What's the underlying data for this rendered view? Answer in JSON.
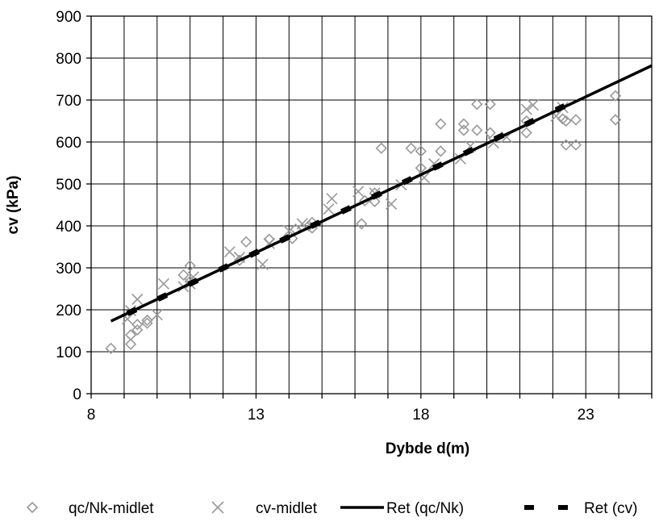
{
  "chart_data": {
    "type": "scatter",
    "title": "",
    "xlabel": "Dybde d(m)",
    "ylabel": "cv (kPa)",
    "xlim": [
      8,
      25
    ],
    "ylim": [
      0,
      900
    ],
    "x_ticks": [
      8,
      13,
      18,
      23
    ],
    "y_ticks": [
      0,
      100,
      200,
      300,
      400,
      500,
      600,
      700,
      800,
      900
    ],
    "x_tick_labels": [
      "8",
      "13",
      "18",
      "23"
    ],
    "y_tick_labels": [
      "0",
      "100",
      "200",
      "300",
      "400",
      "500",
      "600",
      "700",
      "800",
      "900"
    ],
    "grid": true,
    "legend_position": "bottom",
    "series": [
      {
        "name": "qc/Nk-midlet",
        "marker": "diamond",
        "color": "#999999",
        "points": [
          [
            8.6,
            108
          ],
          [
            9.2,
            118
          ],
          [
            9.2,
            140
          ],
          [
            9.4,
            152
          ],
          [
            9.4,
            165
          ],
          [
            9.7,
            168
          ],
          [
            9.7,
            175
          ],
          [
            10.8,
            283
          ],
          [
            11.0,
            305
          ],
          [
            11.0,
            268
          ],
          [
            12.5,
            318
          ],
          [
            12.7,
            362
          ],
          [
            13.4,
            368
          ],
          [
            14.1,
            370
          ],
          [
            14.2,
            392
          ],
          [
            14.6,
            400
          ],
          [
            14.7,
            408
          ],
          [
            14.7,
            395
          ],
          [
            16.2,
            405
          ],
          [
            16.3,
            460
          ],
          [
            16.6,
            458
          ],
          [
            16.6,
            478
          ],
          [
            16.8,
            585
          ],
          [
            17.7,
            585
          ],
          [
            18.0,
            538
          ],
          [
            18.0,
            578
          ],
          [
            18.6,
            578
          ],
          [
            18.6,
            643
          ],
          [
            19.3,
            643
          ],
          [
            19.3,
            628
          ],
          [
            19.7,
            690
          ],
          [
            19.7,
            628
          ],
          [
            20.1,
            690
          ],
          [
            20.1,
            622
          ],
          [
            21.2,
            622
          ],
          [
            21.2,
            650
          ],
          [
            22.3,
            655
          ],
          [
            22.4,
            593
          ],
          [
            22.4,
            650
          ],
          [
            22.7,
            593
          ],
          [
            22.7,
            653
          ],
          [
            23.9,
            710
          ],
          [
            23.9,
            653
          ]
        ]
      },
      {
        "name": "cv-midlet",
        "marker": "x",
        "color": "#999999",
        "points": [
          [
            9.1,
            178
          ],
          [
            9.2,
            198
          ],
          [
            9.4,
            225
          ],
          [
            10.0,
            188
          ],
          [
            10.2,
            262
          ],
          [
            10.8,
            255
          ],
          [
            11.0,
            262
          ],
          [
            11.1,
            278
          ],
          [
            12.2,
            338
          ],
          [
            12.5,
            325
          ],
          [
            13.2,
            308
          ],
          [
            13.4,
            358
          ],
          [
            14.0,
            388
          ],
          [
            14.4,
            405
          ],
          [
            15.2,
            440
          ],
          [
            15.3,
            465
          ],
          [
            16.1,
            482
          ],
          [
            16.6,
            478
          ],
          [
            17.1,
            452
          ],
          [
            17.4,
            498
          ],
          [
            18.1,
            515
          ],
          [
            18.4,
            548
          ],
          [
            19.2,
            560
          ],
          [
            19.5,
            590
          ],
          [
            20.2,
            598
          ],
          [
            20.6,
            612
          ],
          [
            21.2,
            678
          ],
          [
            21.4,
            688
          ],
          [
            22.1,
            662
          ],
          [
            22.3,
            682
          ]
        ]
      },
      {
        "name": "Ret (qc/Nk)",
        "type": "line",
        "style": "solid",
        "color": "#000000",
        "x": [
          8.6,
          25.0
        ],
        "y": [
          173,
          782
        ]
      },
      {
        "name": "Ret (cv)",
        "type": "line",
        "style": "dashed",
        "color": "#000000",
        "x": [
          9.1,
          22.6
        ],
        "y": [
          191,
          695
        ]
      }
    ]
  },
  "legend": [
    {
      "label": "qc/Nk-midlet",
      "marker": "diamond"
    },
    {
      "label": "cv-midlet",
      "marker": "x"
    },
    {
      "label": "Ret (qc/Nk)",
      "marker": "solid-line"
    },
    {
      "label": "Ret (cv)",
      "marker": "dashed-line"
    }
  ],
  "colors": {
    "marker": "#999999",
    "line": "#000000",
    "grid": "#000000",
    "background": "#ffffff"
  }
}
